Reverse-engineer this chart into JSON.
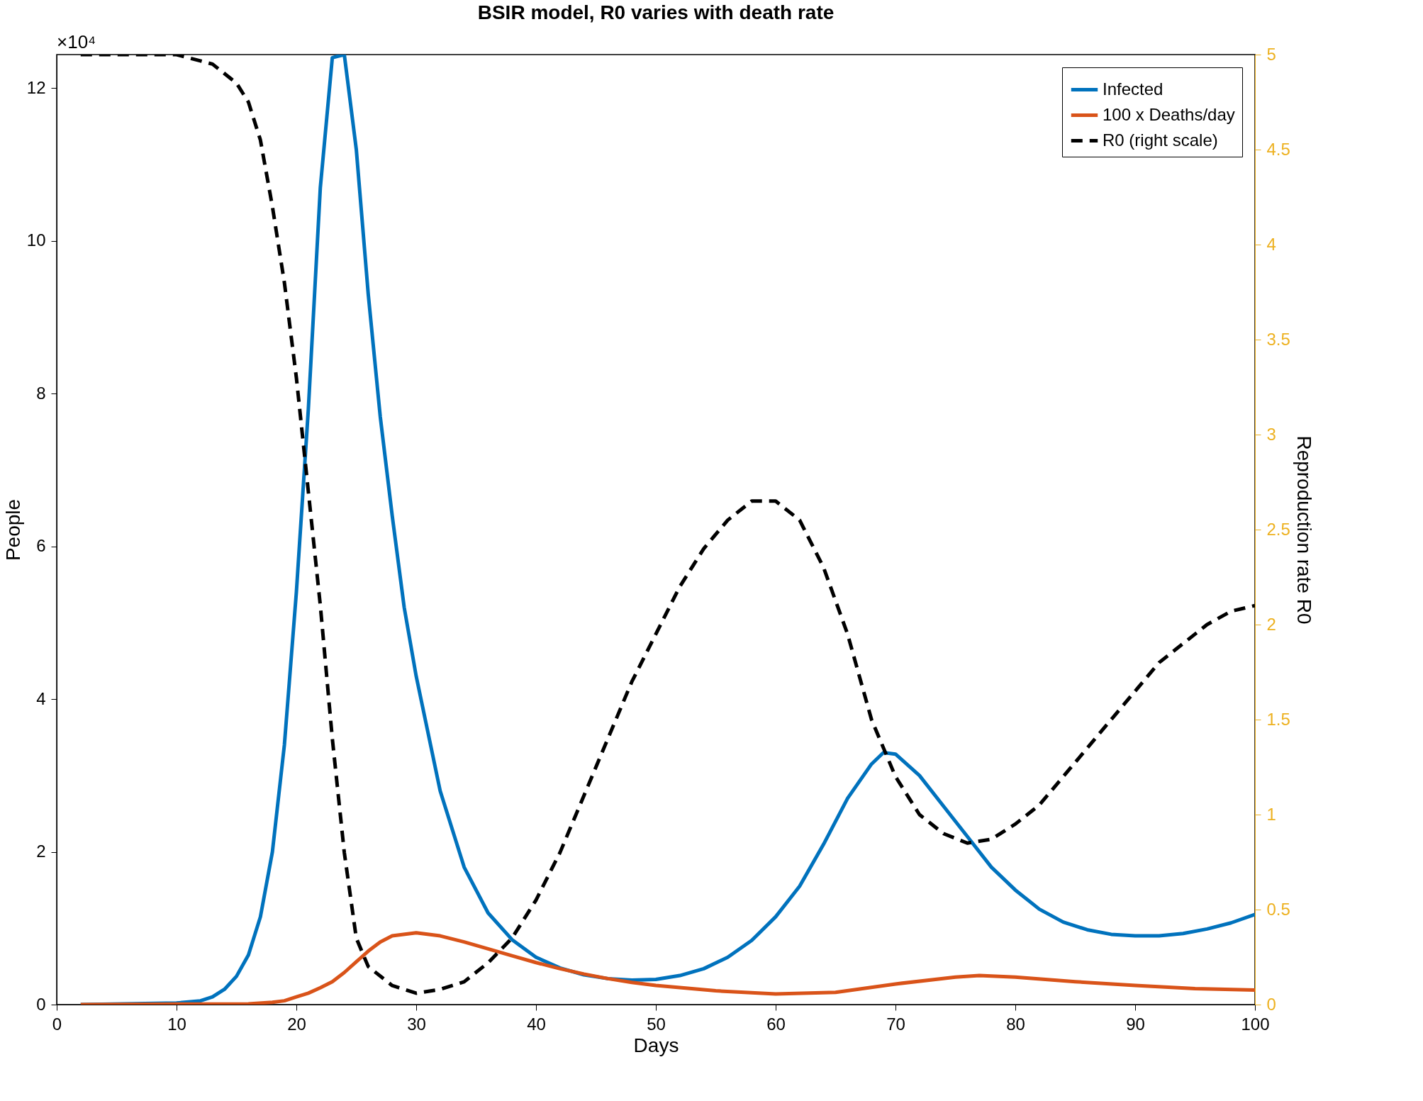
{
  "chart_data": {
    "type": "line",
    "title": "BSIR model, R0 varies with death rate",
    "xlabel": "Days",
    "ylabel": "People",
    "y2label": "Reproduction rate R0",
    "annotations": [
      "×10⁴"
    ],
    "xlim": [
      0,
      100
    ],
    "xticks": [
      0,
      10,
      20,
      30,
      40,
      50,
      60,
      70,
      80,
      90,
      100
    ],
    "ylim": [
      0,
      12.44
    ],
    "yticks": [
      0,
      2,
      4,
      6,
      8,
      10,
      12
    ],
    "y2lim": [
      0,
      5
    ],
    "y2ticks": [
      0,
      0.5,
      1,
      1.5,
      2,
      2.5,
      3,
      3.5,
      4,
      4.5,
      5
    ],
    "legend": "top right",
    "series": [
      {
        "name": "Infected",
        "color": "#0072bd",
        "line_style": "solid",
        "x": [
          2,
          10,
          12,
          13,
          14,
          15,
          16,
          17,
          18,
          19,
          20,
          21,
          22,
          23,
          24,
          25,
          26,
          27,
          28,
          29,
          30,
          32,
          34,
          36,
          38,
          40,
          42,
          44,
          46,
          48,
          50,
          52,
          54,
          56,
          58,
          60,
          62,
          64,
          66,
          68,
          69,
          70,
          72,
          74,
          76,
          78,
          80,
          82,
          84,
          86,
          88,
          90,
          92,
          94,
          96,
          98,
          100
        ],
        "values": [
          0,
          0.02,
          0.05,
          0.1,
          0.2,
          0.37,
          0.65,
          1.15,
          2,
          3.4,
          5.4,
          7.8,
          10.7,
          12.4,
          12.44,
          11.2,
          9.3,
          7.7,
          6.4,
          5.2,
          4.3,
          2.8,
          1.8,
          1.2,
          0.85,
          0.62,
          0.48,
          0.39,
          0.34,
          0.32,
          0.33,
          0.38,
          0.47,
          0.62,
          0.84,
          1.15,
          1.55,
          2.1,
          2.7,
          3.15,
          3.3,
          3.28,
          3,
          2.6,
          2.2,
          1.8,
          1.5,
          1.25,
          1.08,
          0.98,
          0.92,
          0.9,
          0.9,
          0.93,
          0.99,
          1.07,
          1.18
        ]
      },
      {
        "name": "100 x Deaths/day",
        "color": "#d95319",
        "line_style": "solid",
        "x": [
          2,
          16,
          18,
          19,
          20,
          21,
          22,
          23,
          24,
          25,
          26,
          27,
          28,
          30,
          32,
          34,
          36,
          38,
          40,
          42,
          44,
          46,
          48,
          50,
          55,
          60,
          65,
          70,
          75,
          77,
          80,
          85,
          90,
          95,
          100
        ],
        "values": [
          0,
          0.01,
          0.03,
          0.05,
          0.1,
          0.15,
          0.22,
          0.3,
          0.42,
          0.56,
          0.7,
          0.82,
          0.9,
          0.94,
          0.9,
          0.82,
          0.73,
          0.64,
          0.55,
          0.47,
          0.4,
          0.34,
          0.29,
          0.25,
          0.18,
          0.14,
          0.16,
          0.27,
          0.36,
          0.38,
          0.36,
          0.3,
          0.25,
          0.21,
          0.19
        ]
      },
      {
        "name": "R0 (right scale)",
        "color": "#000000",
        "line_style": "dashed",
        "axis": "y2",
        "x": [
          2,
          10,
          13,
          15,
          16,
          17,
          18,
          19,
          20,
          21,
          22,
          23,
          24,
          25,
          26,
          28,
          30,
          32,
          34,
          36,
          38,
          40,
          42,
          44,
          46,
          48,
          50,
          52,
          54,
          56,
          58,
          60,
          62,
          64,
          66,
          68,
          70,
          72,
          74,
          76,
          78,
          80,
          82,
          84,
          86,
          88,
          90,
          92,
          94,
          96,
          98,
          100
        ],
        "values": [
          5,
          5,
          4.95,
          4.85,
          4.75,
          4.55,
          4.2,
          3.8,
          3.3,
          2.7,
          2.1,
          1.4,
          0.8,
          0.35,
          0.2,
          0.1,
          0.06,
          0.08,
          0.12,
          0.22,
          0.35,
          0.55,
          0.8,
          1.1,
          1.4,
          1.7,
          1.95,
          2.2,
          2.4,
          2.55,
          2.65,
          2.65,
          2.55,
          2.3,
          1.95,
          1.5,
          1.2,
          1,
          0.9,
          0.85,
          0.87,
          0.95,
          1.05,
          1.2,
          1.35,
          1.5,
          1.65,
          1.8,
          1.9,
          2,
          2.07,
          2.1
        ]
      }
    ]
  }
}
